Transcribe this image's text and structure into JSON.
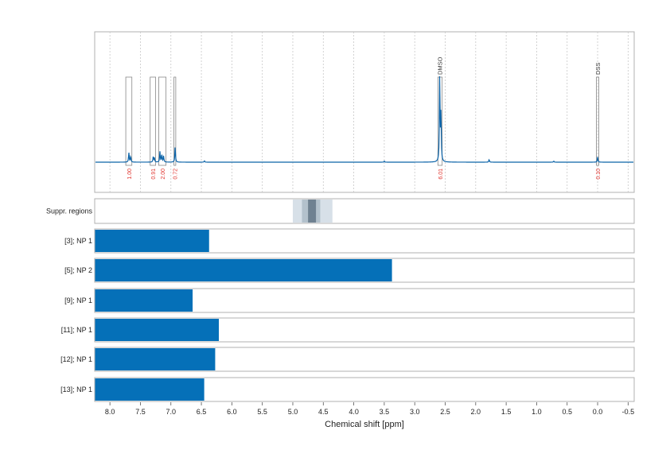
{
  "chart_data": {
    "type": "line",
    "xlabel": "Chemical shift [ppm]",
    "xlim": [
      8.25,
      -0.6
    ],
    "x_ticks": [
      "8.0",
      "7.5",
      "7.0",
      "6.5",
      "6.0",
      "5.5",
      "5.0",
      "4.5",
      "4.0",
      "3.5",
      "3.0",
      "2.5",
      "2.0",
      "1.5",
      "1.0",
      "0.5",
      "0.0",
      "-0.5"
    ],
    "x_tick_values": [
      8.0,
      7.5,
      7.0,
      6.5,
      6.0,
      5.5,
      5.0,
      4.5,
      4.0,
      3.5,
      3.0,
      2.5,
      2.0,
      1.5,
      1.0,
      0.5,
      0.0,
      -0.5
    ],
    "grid": true,
    "line_color": "#0b63a8",
    "spectrum_peaks": [
      {
        "ppm": 7.69,
        "height": 0.11
      },
      {
        "ppm": 7.66,
        "height": 0.07
      },
      {
        "ppm": 7.29,
        "height": 0.06
      },
      {
        "ppm": 7.27,
        "height": 0.05
      },
      {
        "ppm": 7.18,
        "height": 0.12
      },
      {
        "ppm": 7.15,
        "height": 0.09
      },
      {
        "ppm": 7.12,
        "height": 0.07
      },
      {
        "ppm": 6.93,
        "height": 0.18
      },
      {
        "ppm": 6.45,
        "height": 0.015
      },
      {
        "ppm": 3.5,
        "height": 0.012
      },
      {
        "ppm": 2.59,
        "height": 1.0
      },
      {
        "ppm": 2.57,
        "height": 0.55
      },
      {
        "ppm": 1.78,
        "height": 0.03
      },
      {
        "ppm": 0.72,
        "height": 0.012
      },
      {
        "ppm": 0.0,
        "height": 0.06
      }
    ],
    "integrals": [
      {
        "label": "1.00",
        "from": 7.74,
        "to": 7.64
      },
      {
        "label": "0.91",
        "from": 7.34,
        "to": 7.25
      },
      {
        "label": "2.00",
        "from": 7.2,
        "to": 7.08
      },
      {
        "label": "0.72",
        "from": 6.95,
        "to": 6.92
      },
      {
        "label": "6.01",
        "from": 2.62,
        "to": 2.55
      },
      {
        "label": "0.10",
        "from": 0.02,
        "to": -0.02
      }
    ],
    "reference_labels": [
      {
        "label": "DMSO",
        "ppm": 2.59
      },
      {
        "label": "DSS",
        "ppm": 0.0
      }
    ],
    "suppression_label": "Suppr. regions",
    "suppression_regions": [
      {
        "from": 5.0,
        "to": 4.35,
        "shade": "#d7e0e8"
      },
      {
        "from": 4.85,
        "to": 4.55,
        "shade": "#b3c1cc"
      },
      {
        "from": 4.75,
        "to": 4.62,
        "shade": "#6f8191"
      }
    ],
    "bar_color": "#0570b8",
    "bars": [
      {
        "label": "[3]; NP 1",
        "to_ppm": 6.38
      },
      {
        "label": "[5]; NP 2",
        "to_ppm": 3.38
      },
      {
        "label": "[9]; NP 1",
        "to_ppm": 6.65
      },
      {
        "label": "[11]; NP 1",
        "to_ppm": 6.22
      },
      {
        "label": "[12]; NP 1",
        "to_ppm": 6.28
      },
      {
        "label": "[13]; NP 1",
        "to_ppm": 6.46
      }
    ]
  }
}
